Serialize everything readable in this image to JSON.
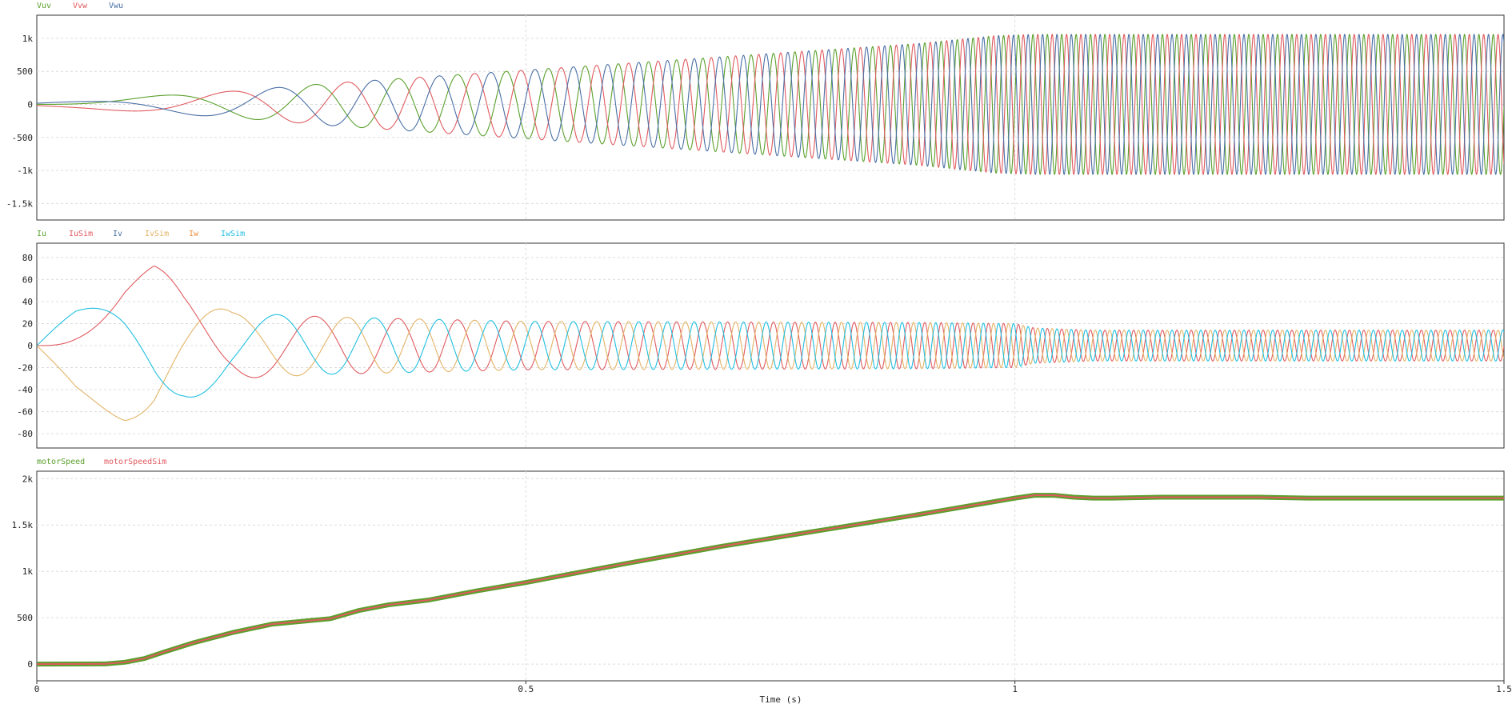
{
  "chart_data": [
    {
      "type": "line",
      "title": "",
      "xlabel": "",
      "ylabel": "",
      "xlim": [
        0,
        1.5
      ],
      "ylim": [
        -1750,
        1350
      ],
      "grid": true,
      "legend_position": "top-left",
      "yticks": [
        {
          "value": 1000,
          "label": "1k"
        },
        {
          "value": 500,
          "label": "500"
        },
        {
          "value": 0,
          "label": "0"
        },
        {
          "value": -500,
          "label": "-500"
        },
        {
          "value": -1000,
          "label": "-1k"
        },
        {
          "value": -1500,
          "label": "-1.5k"
        }
      ],
      "xgrid": [
        0.5,
        1.0
      ],
      "series": [
        {
          "name": "Vuv",
          "color": "#5aa02c",
          "phase_deg": 0
        },
        {
          "name": "Vvw",
          "color": "#e05a5f",
          "phase_deg": -120
        },
        {
          "name": "Vwu",
          "color": "#4a6fa5",
          "phase_deg": 120
        }
      ],
      "envelope": {
        "amplitude": {
          "t": [
            0,
            0.05,
            0.1,
            0.2,
            0.3,
            0.5,
            0.7,
            0.9,
            0.98,
            1.02,
            1.5
          ],
          "v": [
            20,
            60,
            110,
            200,
            320,
            520,
            720,
            920,
            1040,
            1060,
            1060
          ]
        },
        "frequency_hz": {
          "t": [
            0,
            0.1,
            0.2,
            0.3,
            0.5,
            0.7,
            0.9,
            1.02,
            1.5
          ],
          "v": [
            0,
            3,
            6,
            10,
            23,
            40,
            58,
            68,
            68
          ]
        }
      }
    },
    {
      "type": "line",
      "title": "",
      "xlabel": "",
      "ylabel": "",
      "xlim": [
        0,
        1.5
      ],
      "ylim": [
        -93,
        93
      ],
      "grid": true,
      "legend_position": "top-left",
      "yticks": [
        {
          "value": 80,
          "label": "80"
        },
        {
          "value": 60,
          "label": "60"
        },
        {
          "value": 40,
          "label": "40"
        },
        {
          "value": 20,
          "label": "20"
        },
        {
          "value": 0,
          "label": "0"
        },
        {
          "value": -20,
          "label": "-20"
        },
        {
          "value": -40,
          "label": "-40"
        },
        {
          "value": -60,
          "label": "-60"
        },
        {
          "value": -80,
          "label": "-80"
        }
      ],
      "xgrid": [
        0.5,
        1.0
      ],
      "series": [
        {
          "name": "Iu",
          "color": "#5aa02c",
          "phase_deg": 0,
          "drawn": false
        },
        {
          "name": "IuSim",
          "color": "#e05a5f",
          "phase_deg": 0
        },
        {
          "name": "Iv",
          "color": "#4a6fa5",
          "phase_deg": -120,
          "drawn": false
        },
        {
          "name": "IvSim",
          "color": "#e3b366",
          "phase_deg": -120
        },
        {
          "name": "Iw",
          "color": "#f08c3a",
          "phase_deg": 120,
          "drawn": false
        },
        {
          "name": "IwSim",
          "color": "#1fbfe0",
          "phase_deg": 120
        }
      ],
      "envelope": {
        "amplitude": {
          "t": [
            0,
            0.04,
            0.09,
            0.12,
            0.15,
            0.2,
            0.3,
            0.4,
            0.5,
            0.9,
            1.0,
            1.02,
            1.08,
            1.5
          ],
          "v": [
            0,
            40,
            70,
            74,
            52,
            30,
            26,
            24,
            22,
            21,
            20,
            16,
            14,
            14
          ]
        },
        "frequency_hz": {
          "t": [
            0,
            0.1,
            0.2,
            0.3,
            0.5,
            0.7,
            0.9,
            1.02,
            1.5
          ],
          "v": [
            0,
            3,
            6,
            10,
            23,
            40,
            58,
            68,
            68
          ]
        }
      }
    },
    {
      "type": "line",
      "title": "",
      "xlabel": "Time (s)",
      "ylabel": "",
      "xlim": [
        0,
        1.5
      ],
      "ylim": [
        -180,
        2080
      ],
      "grid": true,
      "legend_position": "top-left",
      "yticks": [
        {
          "value": 2000,
          "label": "2k"
        },
        {
          "value": 1500,
          "label": "1.5k"
        },
        {
          "value": 1000,
          "label": "1k"
        },
        {
          "value": 500,
          "label": "500"
        },
        {
          "value": 0,
          "label": "0"
        }
      ],
      "xticks": [
        {
          "value": 0,
          "label": "0"
        },
        {
          "value": 0.5,
          "label": "0.5"
        },
        {
          "value": 1,
          "label": "1"
        },
        {
          "value": 1.5,
          "label": "1.5"
        }
      ],
      "xgrid": [
        0.5,
        1.0
      ],
      "series": [
        {
          "name": "motorSpeed",
          "color": "#5aa02c",
          "x": [
            0,
            0.07,
            0.09,
            0.11,
            0.13,
            0.16,
            0.2,
            0.24,
            0.28,
            0.3,
            0.33,
            0.36,
            0.4,
            0.45,
            0.5,
            0.6,
            0.7,
            0.8,
            0.9,
            1.0,
            1.02,
            1.04,
            1.06,
            1.08,
            1.1,
            1.15,
            1.2,
            1.25,
            1.3,
            1.4,
            1.5
          ],
          "y": [
            0,
            2,
            20,
            60,
            130,
            230,
            340,
            430,
            470,
            490,
            580,
            640,
            690,
            790,
            880,
            1080,
            1270,
            1440,
            1610,
            1790,
            1820,
            1820,
            1800,
            1790,
            1790,
            1800,
            1800,
            1800,
            1790,
            1790,
            1790
          ]
        },
        {
          "name": "motorSpeedSim",
          "color": "#e05a5f",
          "x": [
            0,
            0.07,
            0.09,
            0.11,
            0.13,
            0.16,
            0.2,
            0.24,
            0.28,
            0.3,
            0.33,
            0.36,
            0.4,
            0.45,
            0.5,
            0.6,
            0.7,
            0.8,
            0.9,
            1.0,
            1.02,
            1.04,
            1.06,
            1.08,
            1.1,
            1.15,
            1.2,
            1.25,
            1.3,
            1.4,
            1.5
          ],
          "y": [
            0,
            2,
            20,
            60,
            130,
            230,
            340,
            430,
            470,
            490,
            580,
            640,
            690,
            790,
            880,
            1080,
            1270,
            1440,
            1610,
            1790,
            1820,
            1820,
            1800,
            1790,
            1790,
            1800,
            1800,
            1800,
            1790,
            1790,
            1790
          ]
        }
      ]
    }
  ]
}
